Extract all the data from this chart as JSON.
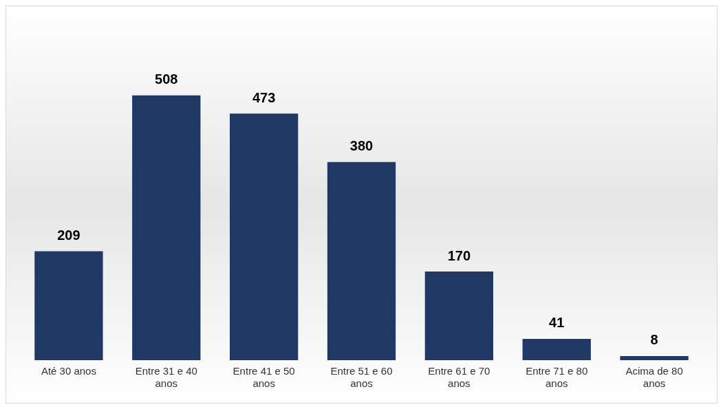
{
  "chart_data": {
    "type": "bar",
    "categories": [
      "Até 30 anos",
      "Entre 31 e 40 anos",
      "Entre 41 e 50 anos",
      "Entre 51 e 60 anos",
      "Entre 61 e 70 anos",
      "Entre 71 e 80 anos",
      "Acima de 80 anos"
    ],
    "values": [
      209,
      508,
      473,
      380,
      170,
      41,
      8
    ],
    "color": "#1f3864",
    "data_labels": true,
    "grid": false,
    "legend": false
  }
}
